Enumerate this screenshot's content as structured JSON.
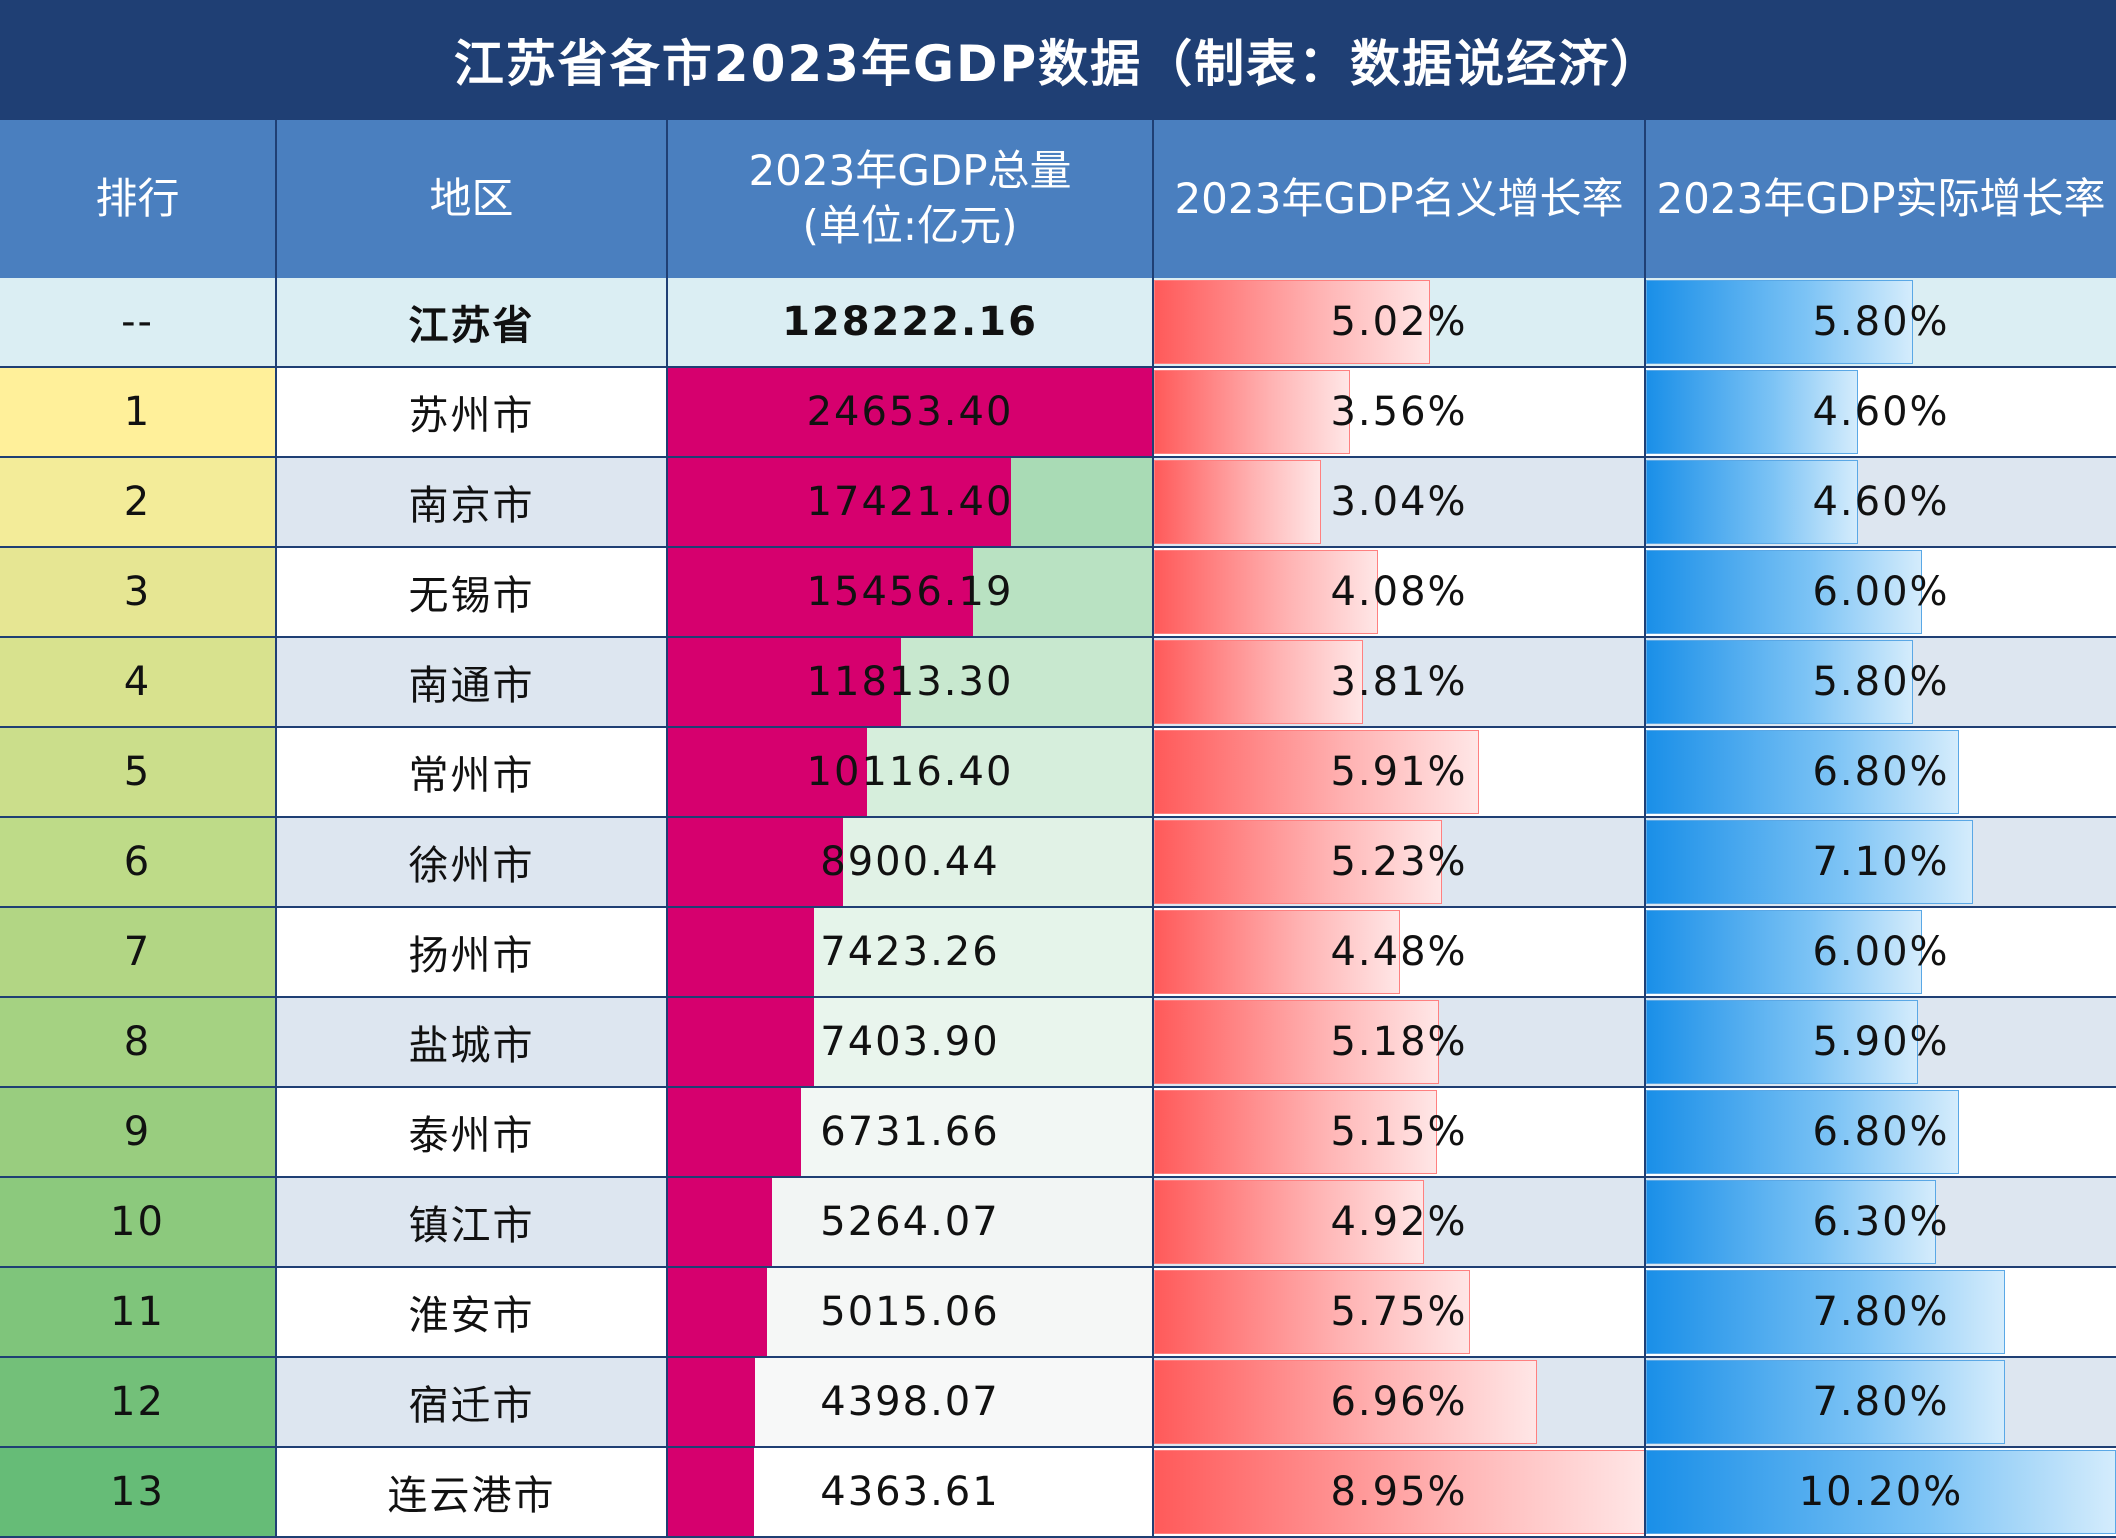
{
  "title": "江苏省各市2023年GDP数据（制表：数据说经济）",
  "headers": {
    "rank": "排行",
    "region": "地区",
    "gdp_line1": "2023年GDP总量",
    "gdp_line2": "(单位:亿元)",
    "nominal": "2023年GDP名义增长率",
    "real": "2023年GDP实际增长率"
  },
  "province": {
    "rank": "--",
    "region": "江苏省",
    "gdp": "128222.16",
    "nominal": "5.02%",
    "real": "5.80%"
  },
  "chart_data": {
    "type": "table",
    "title": "江苏省各市2023年GDP数据（制表：数据说经济）",
    "columns": [
      "排行",
      "地区",
      "2023年GDP总量(单位:亿元)",
      "2023年GDP名义增长率",
      "2023年GDP实际增长率"
    ],
    "province_total": {
      "region": "江苏省",
      "gdp": 128222.16,
      "nominal_growth": 5.02,
      "real_growth": 5.8
    },
    "rows": [
      {
        "rank": "1",
        "region": "苏州市",
        "gdp": "24653.40",
        "nominal": "3.56%",
        "real": "4.60%"
      },
      {
        "rank": "2",
        "region": "南京市",
        "gdp": "17421.40",
        "nominal": "3.04%",
        "real": "4.60%"
      },
      {
        "rank": "3",
        "region": "无锡市",
        "gdp": "15456.19",
        "nominal": "4.08%",
        "real": "6.00%"
      },
      {
        "rank": "4",
        "region": "南通市",
        "gdp": "11813.30",
        "nominal": "3.81%",
        "real": "5.80%"
      },
      {
        "rank": "5",
        "region": "常州市",
        "gdp": "10116.40",
        "nominal": "5.91%",
        "real": "6.80%"
      },
      {
        "rank": "6",
        "region": "徐州市",
        "gdp": "8900.44",
        "nominal": "5.23%",
        "real": "7.10%"
      },
      {
        "rank": "7",
        "region": "扬州市",
        "gdp": "7423.26",
        "nominal": "4.48%",
        "real": "6.00%"
      },
      {
        "rank": "8",
        "region": "盐城市",
        "gdp": "7403.90",
        "nominal": "5.18%",
        "real": "5.90%"
      },
      {
        "rank": "9",
        "region": "泰州市",
        "gdp": "6731.66",
        "nominal": "5.15%",
        "real": "6.80%"
      },
      {
        "rank": "10",
        "region": "镇江市",
        "gdp": "5264.07",
        "nominal": "4.92%",
        "real": "6.30%"
      },
      {
        "rank": "11",
        "region": "淮安市",
        "gdp": "5015.06",
        "nominal": "5.75%",
        "real": "7.80%"
      },
      {
        "rank": "12",
        "region": "宿迁市",
        "gdp": "4398.07",
        "nominal": "6.96%",
        "real": "7.80%"
      },
      {
        "rank": "13",
        "region": "连云港市",
        "gdp": "4363.61",
        "nominal": "8.95%",
        "real": "10.20%"
      }
    ],
    "bar_scales": {
      "gdp_max": 24653.4,
      "nominal_max": 8.95,
      "real_max": 10.2
    }
  },
  "colors": {
    "title_bg": "#1f3f74",
    "header_bg": "#4a7fbf",
    "gdp_bar": "#d6006e",
    "rank_gradient": [
      "#fff09a",
      "#f3ec99",
      "#e6e693",
      "#d8e28e",
      "#cbde8b",
      "#bedb88",
      "#b2d684",
      "#a5d282",
      "#99cd7f",
      "#8cc97d",
      "#7fc57b",
      "#73c079",
      "#66bc77"
    ],
    "gdp_cell_bg": [
      "#99d4a8",
      "#a9dbb5",
      "#b9e2c2",
      "#c8e8cf",
      "#d6eedc",
      "#e1f2e6",
      "#e5f4ea",
      "#e9f5ed",
      "#f2f7f4",
      "#f2f5f4",
      "#f5f7f6",
      "#f7f8f8",
      "#ffffff"
    ]
  }
}
